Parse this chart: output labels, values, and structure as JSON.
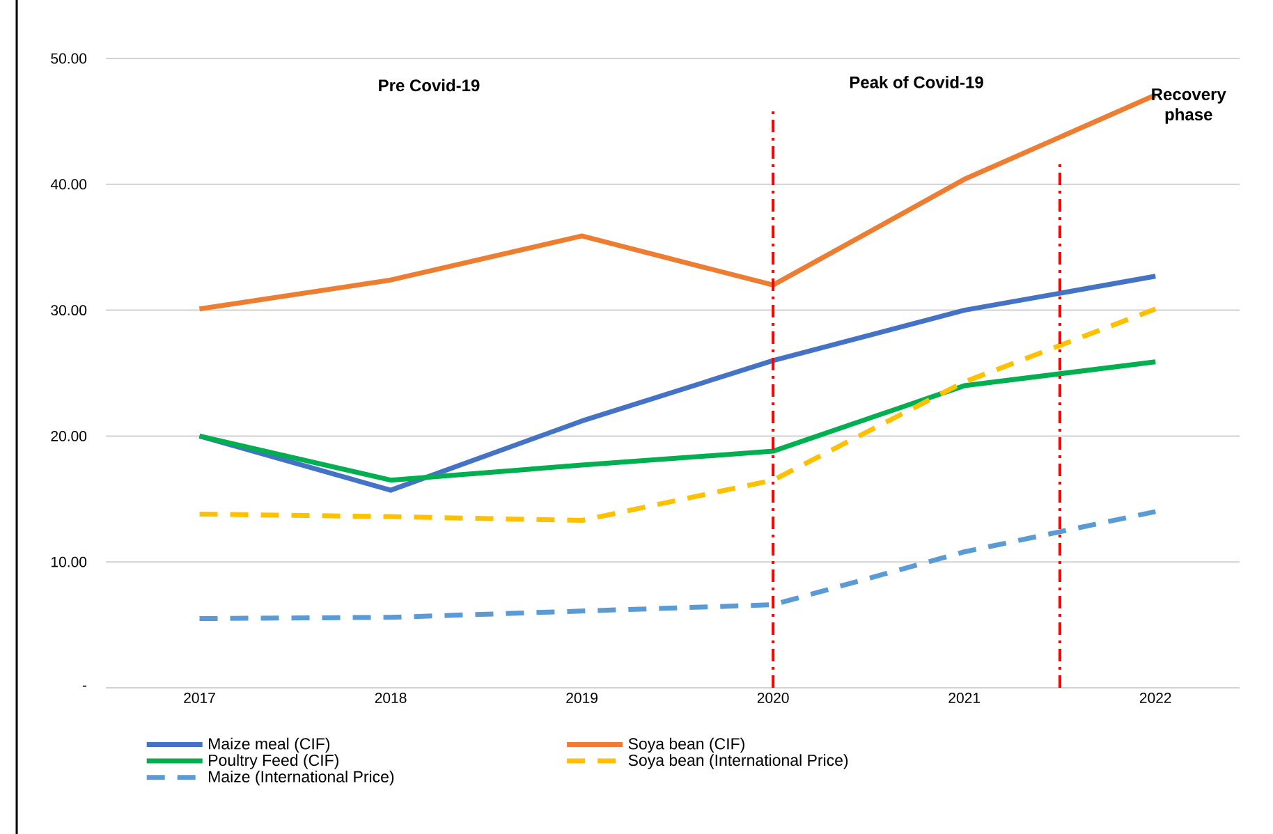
{
  "chart_data": {
    "type": "line",
    "categories": [
      "2017",
      "2018",
      "2019",
      "2020",
      "2021",
      "2022"
    ],
    "series": [
      {
        "name": "Maize meal (CIF)",
        "color": "#4472c4",
        "line_style": "solid",
        "values": [
          20.0,
          15.7,
          21.2,
          26.0,
          30.0,
          32.7
        ]
      },
      {
        "name": "Soya bean (CIF)",
        "color": "#ed7d31",
        "line_style": "solid",
        "values": [
          30.1,
          32.4,
          35.9,
          32.0,
          40.4,
          47.1
        ]
      },
      {
        "name": "Poultry Feed (CIF)",
        "color": "#00b050",
        "line_style": "solid",
        "values": [
          20.0,
          16.5,
          17.7,
          18.8,
          24.0,
          25.9
        ]
      },
      {
        "name": "Soya bean (International Price)",
        "color": "#ffc000",
        "line_style": "dashed",
        "values": [
          13.8,
          13.6,
          13.3,
          16.5,
          24.3,
          30.1
        ]
      },
      {
        "name": "Maize (International Price)",
        "color": "#5b9bd5",
        "line_style": "dashed",
        "values": [
          5.5,
          5.6,
          6.1,
          6.6,
          10.8,
          14.0
        ]
      }
    ],
    "ylim": [
      0,
      50
    ],
    "yticks": [
      {
        "value": 0,
        "label": "-"
      },
      {
        "value": 10,
        "label": "10.00"
      },
      {
        "value": 20,
        "label": "20.00"
      },
      {
        "value": 30,
        "label": "30.00"
      },
      {
        "value": 40,
        "label": "40.00"
      },
      {
        "value": 50,
        "label": "50.00"
      }
    ],
    "grid": "y",
    "legend": "bottom",
    "marker": "none",
    "ref_lines": [
      {
        "axis": "x",
        "value": "2020",
        "color": "#ff0000",
        "line_style": "dashed"
      }
    ],
    "annotations": [
      "Pre Covid-19",
      "Peak of Covid-19",
      "Recovery phase"
    ]
  }
}
